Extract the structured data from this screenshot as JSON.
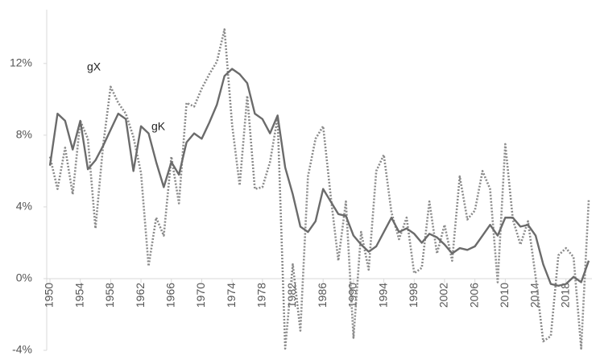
{
  "chart_data": {
    "type": "line",
    "x": [
      1950,
      1951,
      1952,
      1953,
      1954,
      1955,
      1956,
      1957,
      1958,
      1959,
      1960,
      1961,
      1962,
      1963,
      1964,
      1965,
      1966,
      1967,
      1968,
      1969,
      1970,
      1971,
      1972,
      1973,
      1974,
      1975,
      1976,
      1977,
      1978,
      1979,
      1980,
      1981,
      1982,
      1983,
      1984,
      1985,
      1986,
      1987,
      1988,
      1989,
      1990,
      1991,
      1992,
      1993,
      1994,
      1995,
      1996,
      1997,
      1998,
      1999,
      2000,
      2001,
      2002,
      2003,
      2004,
      2005,
      2006,
      2007,
      2008,
      2009,
      2010,
      2011,
      2012,
      2013,
      2014,
      2015,
      2016,
      2017,
      2018,
      2019,
      2020,
      2021
    ],
    "series": [
      {
        "name": "gK",
        "color": "#6b6b6b",
        "dash": false,
        "values": [
          6.3,
          9.2,
          8.8,
          7.2,
          8.8,
          6.1,
          6.6,
          7.4,
          8.3,
          9.2,
          8.9,
          6.0,
          8.5,
          8.1,
          6.5,
          5.1,
          6.5,
          5.8,
          7.6,
          8.1,
          7.8,
          8.7,
          9.7,
          11.3,
          11.7,
          11.4,
          10.9,
          9.2,
          8.9,
          8.1,
          9.1,
          6.2,
          4.7,
          2.9,
          2.6,
          3.2,
          5.0,
          4.3,
          3.6,
          3.5,
          2.4,
          1.9,
          1.5,
          1.8,
          2.6,
          3.4,
          2.6,
          2.8,
          2.5,
          2.0,
          2.5,
          2.3,
          1.9,
          1.4,
          1.7,
          1.6,
          1.8,
          2.4,
          3.0,
          2.4,
          3.4,
          3.4,
          2.9,
          3.0,
          2.4,
          0.8,
          -0.3,
          -0.4,
          -0.3,
          0.1,
          -0.2,
          1.0
        ]
      },
      {
        "name": "gX",
        "color": "#8a8a8a",
        "dash": true,
        "values": [
          6.8,
          5.0,
          7.3,
          4.7,
          8.8,
          7.8,
          2.8,
          7.4,
          10.7,
          9.8,
          9.2,
          7.9,
          5.9,
          0.7,
          3.4,
          2.4,
          6.8,
          4.2,
          9.8,
          9.6,
          10.6,
          11.4,
          12.1,
          13.9,
          8.6,
          5.2,
          10.2,
          5.0,
          5.1,
          6.5,
          9.0,
          -3.9,
          0.8,
          -2.9,
          5.7,
          7.8,
          8.5,
          4.6,
          1.0,
          4.3,
          -3.3,
          2.6,
          0.5,
          6.0,
          6.9,
          3.7,
          2.2,
          3.4,
          0.3,
          0.6,
          4.3,
          1.4,
          3.0,
          1.0,
          5.7,
          3.3,
          3.8,
          6.0,
          5.0,
          -0.2,
          7.5,
          3.3,
          1.9,
          3.2,
          0.1,
          -3.5,
          -3.2,
          1.3,
          1.7,
          1.2,
          -3.9,
          4.4
        ]
      }
    ],
    "xlim": [
      1950,
      2021
    ],
    "xticks": [
      1950,
      1954,
      1958,
      1962,
      1966,
      1970,
      1974,
      1978,
      1982,
      1986,
      1990,
      1994,
      1998,
      2002,
      2006,
      2010,
      2014,
      2018
    ],
    "ylim": [
      -4,
      15
    ],
    "yticks": [
      {
        "value": -4,
        "label": "-4%"
      },
      {
        "value": 0,
        "label": "0%"
      },
      {
        "value": 4,
        "label": "4%"
      },
      {
        "value": 8,
        "label": "8%"
      },
      {
        "value": 12,
        "label": "12%"
      }
    ],
    "grid": false
  }
}
